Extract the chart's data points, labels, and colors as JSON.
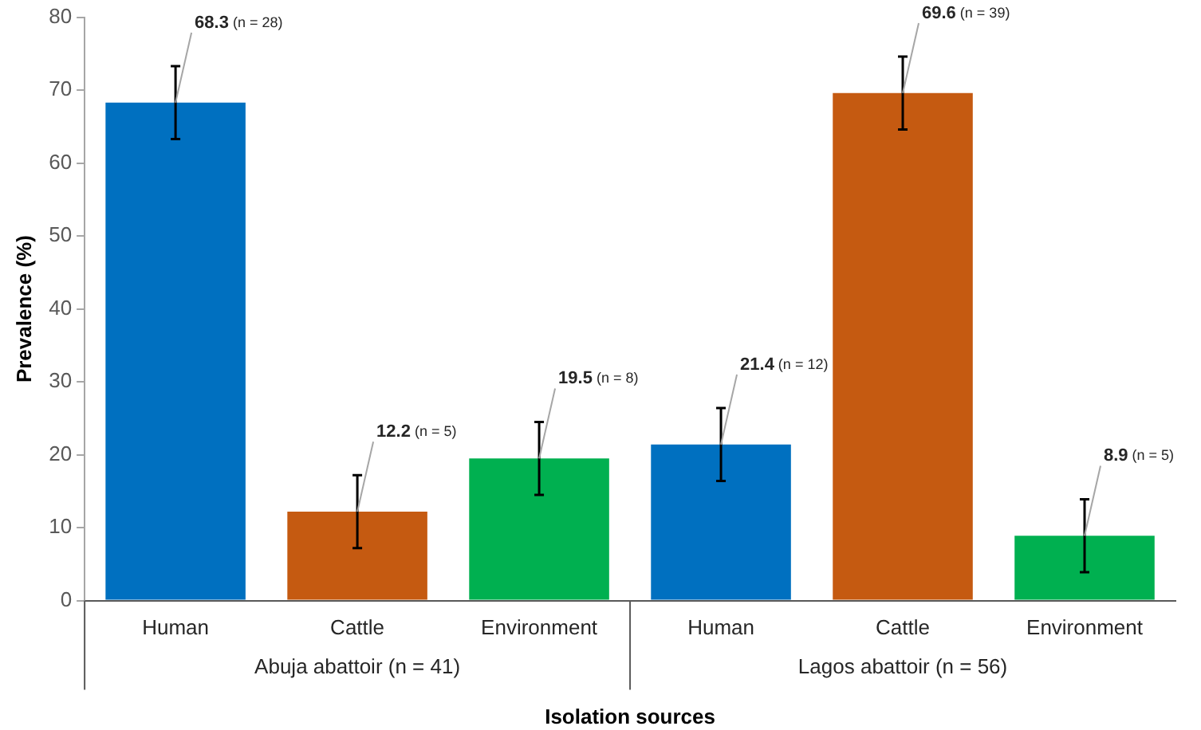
{
  "chart_data": {
    "type": "bar",
    "ylabel": "Prevalence (%)",
    "xlabel": "Isolation sources",
    "categories": [
      "Human",
      "Cattle",
      "Environment",
      "Human",
      "Cattle",
      "Environment"
    ],
    "values": [
      68.3,
      12.2,
      19.5,
      21.4,
      69.6,
      8.9
    ],
    "colors": [
      "#0070c0",
      "#c55a11",
      "#00b050",
      "#0070c0",
      "#c55a11",
      "#00b050"
    ],
    "errors": [
      5,
      5,
      5,
      5,
      5,
      5
    ],
    "value_labels": [
      "68.3 (n = 28)",
      "12.2 (n = 5)",
      "19.5 (n = 8)",
      "21.4 (n = 12)",
      "69.6 (n = 39)",
      "8.9 (n = 5)"
    ],
    "annotations": [
      "Abuja abattoir (n = 41)",
      "Lagos abattoir (n = 56)"
    ],
    "ylim": [
      0,
      80
    ],
    "yticks": [
      0,
      10,
      20,
      30,
      40,
      50,
      60,
      70,
      80
    ]
  }
}
